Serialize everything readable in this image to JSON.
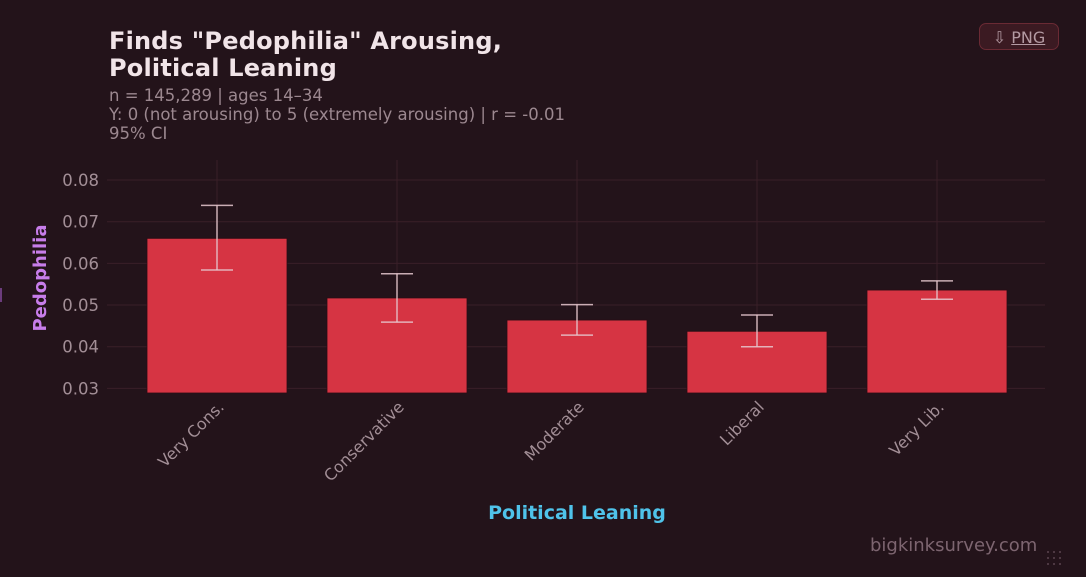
{
  "header": {
    "title_line1": "Finds \"Pedophilia\" Arousing,",
    "title_line2": "Political Leaning",
    "subtitle_line1": "n = 145,289  |  ages 14–34",
    "subtitle_line2": "Y: 0 (not arousing) to 5 (extremely arousing)  |  r = -0.01",
    "subtitle_line3": "95% CI"
  },
  "toolbar": {
    "png_icon": "download-arrow-icon",
    "png_glyph": "⇩",
    "png_label": "PNG"
  },
  "footer": {
    "watermark": "bigkinksurvey.com"
  },
  "colors": {
    "background": "#23131a",
    "bar": "#d63443",
    "errorbar": "#e7c9cf",
    "grid": "#3a1f28",
    "ylabel": "#c77dea",
    "xlabel": "#4fc3ea"
  },
  "chart_data": {
    "type": "bar",
    "title": "Finds \"Pedophilia\" Arousing, Political Leaning",
    "xlabel": "Political Leaning",
    "ylabel": "Pedophilia",
    "categories": [
      "Very Cons.",
      "Conservative",
      "Moderate",
      "Liberal",
      "Very Lib."
    ],
    "values": [
      0.066,
      0.0517,
      0.0464,
      0.0437,
      0.0536
    ],
    "ci_low": [
      0.0584,
      0.0459,
      0.0428,
      0.04,
      0.0514
    ],
    "ci_high": [
      0.0739,
      0.0575,
      0.0501,
      0.0476,
      0.0558
    ],
    "yticks": [
      0.03,
      0.04,
      0.05,
      0.06,
      0.07,
      0.08
    ],
    "ytick_labels": [
      "0.03",
      "0.04",
      "0.05",
      "0.06",
      "0.07",
      "0.08"
    ],
    "ylim": [
      0.0289,
      0.0848
    ],
    "grid": true,
    "legend": "none"
  }
}
